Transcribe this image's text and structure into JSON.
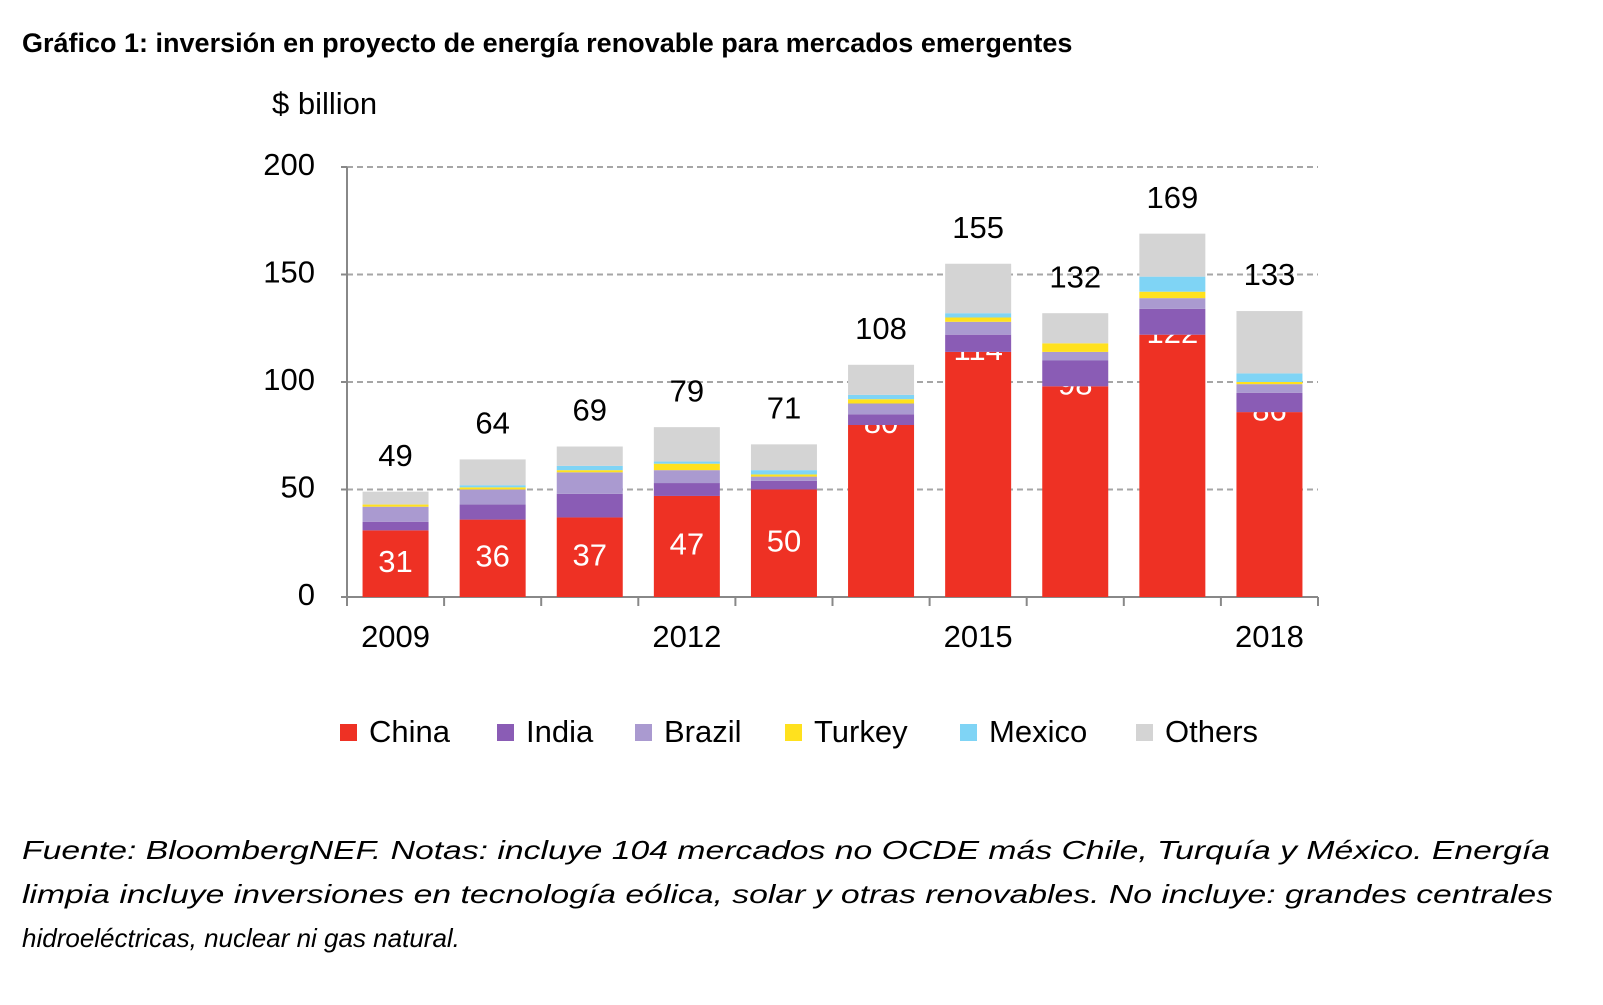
{
  "chart_data": {
    "type": "stacked-bar",
    "title": "Gráfico 1: inversión en proyecto de energía renovable para mercados emergentes",
    "y_label": "$ billion",
    "categories": [
      "2009",
      null,
      null,
      "2012",
      null,
      null,
      "2015",
      null,
      null,
      "2018"
    ],
    "series": [
      {
        "name": "China",
        "color": "#ee3124",
        "values": [
          31,
          36,
          37,
          47,
          50,
          80,
          114,
          98,
          122,
          86
        ]
      },
      {
        "name": "India",
        "color": "#8a5cb5",
        "values": [
          4,
          7,
          11,
          6,
          4,
          5,
          8,
          12,
          12,
          9
        ]
      },
      {
        "name": "Brazil",
        "color": "#aa9ad0",
        "values": [
          7,
          7,
          10,
          6,
          2,
          5,
          6,
          4,
          5,
          4
        ]
      },
      {
        "name": "Turkey",
        "color": "#ffe11e",
        "values": [
          1,
          1,
          1,
          3,
          1,
          2,
          2,
          4,
          3,
          1
        ]
      },
      {
        "name": "Mexico",
        "color": "#7fd4f5",
        "values": [
          0,
          1,
          2,
          1,
          2,
          2,
          2,
          0,
          7,
          4
        ]
      },
      {
        "name": "Others",
        "color": "#d4d4d4",
        "values": [
          6,
          12,
          9,
          16,
          12,
          14,
          23,
          14,
          20,
          29
        ]
      }
    ],
    "totals": [
      49,
      64,
      69,
      79,
      71,
      108,
      155,
      132,
      169,
      133
    ],
    "ylim": [
      0,
      200
    ],
    "yticks": [
      0,
      50,
      100,
      150,
      200
    ],
    "grid": true,
    "legend": "bottom",
    "note": [
      "Fuente: BloombergNEF. Notas: incluye 104 mercados no OCDE más Chile, Turquía y México. Energía",
      "limpia incluye inversiones en tecnología eólica, solar y otras renovables. No incluye: grandes centrales",
      "hidroeléctricas, nuclear ni gas natural."
    ]
  }
}
